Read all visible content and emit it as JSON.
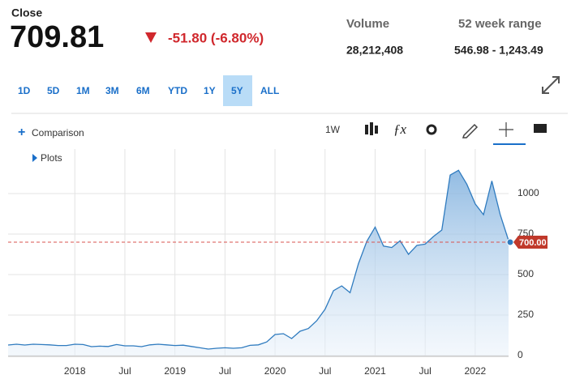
{
  "header": {
    "close_label": "Close",
    "price": "709.81",
    "change": "-51.80 (-6.80%)",
    "volume_label": "Volume",
    "volume": "28,212,408",
    "range_label": "52 week range",
    "range": "546.98 - 1,243.49"
  },
  "range_buttons": [
    "1D",
    "5D",
    "1M",
    "3M",
    "6M",
    "YTD",
    "1Y",
    "5Y",
    "ALL"
  ],
  "selected_range": "5Y",
  "toolbar": {
    "comparison": "Comparison",
    "interval": "1W",
    "plots": "Plots"
  },
  "chart_data": {
    "type": "line",
    "x": [
      "2017-05",
      "2017-06",
      "2017-07",
      "2017-08",
      "2017-09",
      "2017-10",
      "2017-11",
      "2017-12",
      "2018-01",
      "2018-02",
      "2018-03",
      "2018-04",
      "2018-05",
      "2018-06",
      "2018-07",
      "2018-08",
      "2018-09",
      "2018-10",
      "2018-11",
      "2018-12",
      "2019-01",
      "2019-02",
      "2019-03",
      "2019-04",
      "2019-05",
      "2019-06",
      "2019-07",
      "2019-08",
      "2019-09",
      "2019-10",
      "2019-11",
      "2019-12",
      "2020-01",
      "2020-02",
      "2020-03",
      "2020-04",
      "2020-05",
      "2020-06",
      "2020-07",
      "2020-08",
      "2020-09",
      "2020-10",
      "2020-11",
      "2020-12",
      "2021-01",
      "2021-02",
      "2021-03",
      "2021-04",
      "2021-05",
      "2021-06",
      "2021-07",
      "2021-08",
      "2021-09",
      "2021-10",
      "2021-11",
      "2021-12",
      "2022-01",
      "2022-02",
      "2022-03",
      "2022-04",
      "2022-05"
    ],
    "series": [
      {
        "name": "Close",
        "color": "#2f7bbf",
        "values": [
          65,
          70,
          65,
          70,
          68,
          66,
          62,
          62,
          70,
          68,
          55,
          58,
          56,
          68,
          60,
          60,
          55,
          66,
          70,
          66,
          62,
          64,
          56,
          48,
          40,
          45,
          48,
          45,
          48,
          63,
          66,
          84,
          130,
          135,
          105,
          150,
          167,
          215,
          286,
          400,
          430,
          388,
          567,
          705,
          793,
          676,
          667,
          709,
          625,
          680,
          688,
          735,
          775,
          1114,
          1144,
          1057,
          936,
          870,
          1078,
          870,
          709.81
        ]
      }
    ],
    "xlim": [
      "2017-05",
      "2022-05"
    ],
    "xticks": [
      {
        "value": "2018-01",
        "label": "2018"
      },
      {
        "value": "2018-07",
        "label": "Jul"
      },
      {
        "value": "2019-01",
        "label": "2019"
      },
      {
        "value": "2019-07",
        "label": "Jul"
      },
      {
        "value": "2020-01",
        "label": "2020"
      },
      {
        "value": "2020-07",
        "label": "Jul"
      },
      {
        "value": "2021-01",
        "label": "2021"
      },
      {
        "value": "2021-07",
        "label": "Jul"
      },
      {
        "value": "2022-01",
        "label": "2022"
      }
    ],
    "ylim": [
      0,
      1275
    ],
    "yticks": [
      0,
      250,
      500,
      750,
      1000
    ],
    "grid": true,
    "current_marker": {
      "value": 700,
      "label": "700.00"
    }
  }
}
